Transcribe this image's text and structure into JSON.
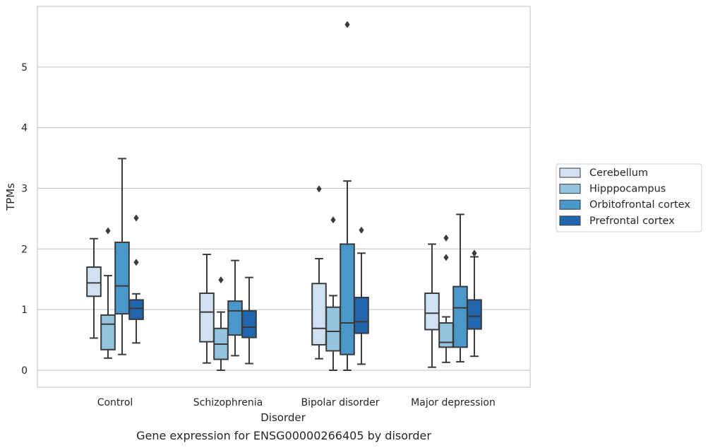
{
  "chart_data": {
    "type": "boxplot",
    "caption": "Gene expression for ENSG00000266405 by disorder",
    "xlabel": "Disorder",
    "ylabel": "TPMs",
    "ylim": [
      -0.28,
      6.0
    ],
    "yticks": [
      0,
      1,
      2,
      3,
      4,
      5
    ],
    "grid": true,
    "legend_position": "right",
    "categories": [
      "Control",
      "Schizophrenia",
      "Bipolar disorder",
      "Major depression"
    ],
    "series": [
      {
        "name": "Cerebellum",
        "color": "#d0e1f2",
        "boxes": [
          {
            "whislo": 0.53,
            "q1": 1.22,
            "med": 1.44,
            "q3": 1.7,
            "whishi": 2.17,
            "fliers": []
          },
          {
            "whislo": 0.12,
            "q1": 0.47,
            "med": 0.96,
            "q3": 1.27,
            "whishi": 1.91,
            "fliers": []
          },
          {
            "whislo": 0.19,
            "q1": 0.42,
            "med": 0.69,
            "q3": 1.43,
            "whishi": 1.84,
            "fliers": [
              2.99
            ]
          },
          {
            "whislo": 0.05,
            "q1": 0.67,
            "med": 0.94,
            "q3": 1.27,
            "whishi": 2.08,
            "fliers": []
          }
        ]
      },
      {
        "name": "Hipppocampus",
        "color": "#94c4df",
        "boxes": [
          {
            "whislo": 0.2,
            "q1": 0.34,
            "med": 0.76,
            "q3": 0.91,
            "whishi": 1.56,
            "fliers": [
              2.3
            ]
          },
          {
            "whislo": 0.0,
            "q1": 0.18,
            "med": 0.43,
            "q3": 0.69,
            "whishi": 0.96,
            "fliers": [
              1.49
            ]
          },
          {
            "whislo": 0.0,
            "q1": 0.32,
            "med": 0.64,
            "q3": 1.04,
            "whishi": 1.23,
            "fliers": [
              2.48
            ]
          },
          {
            "whislo": 0.13,
            "q1": 0.38,
            "med": 0.46,
            "q3": 0.78,
            "whishi": 0.88,
            "fliers": [
              1.86,
              2.18
            ]
          }
        ]
      },
      {
        "name": "Orbitofrontal cortex",
        "color": "#4a98c9",
        "boxes": [
          {
            "whislo": 0.26,
            "q1": 0.93,
            "med": 1.39,
            "q3": 2.11,
            "whishi": 3.49,
            "fliers": []
          },
          {
            "whislo": 0.24,
            "q1": 0.58,
            "med": 0.98,
            "q3": 1.14,
            "whishi": 1.81,
            "fliers": []
          },
          {
            "whislo": 0.0,
            "q1": 0.26,
            "med": 0.78,
            "q3": 2.08,
            "whishi": 3.12,
            "fliers": [
              5.7
            ]
          },
          {
            "whislo": 0.14,
            "q1": 0.38,
            "med": 1.03,
            "q3": 1.38,
            "whishi": 2.57,
            "fliers": []
          }
        ]
      },
      {
        "name": "Prefrontal cortex",
        "color": "#2166ac",
        "boxes": [
          {
            "whislo": 0.45,
            "q1": 0.84,
            "med": 1.02,
            "q3": 1.16,
            "whishi": 1.26,
            "fliers": [
              1.78,
              2.51
            ]
          },
          {
            "whislo": 0.11,
            "q1": 0.54,
            "med": 0.71,
            "q3": 0.98,
            "whishi": 1.53,
            "fliers": []
          },
          {
            "whislo": 0.1,
            "q1": 0.61,
            "med": 0.8,
            "q3": 1.2,
            "whishi": 1.93,
            "fliers": [
              2.31
            ]
          },
          {
            "whislo": 0.23,
            "q1": 0.68,
            "med": 0.89,
            "q3": 1.16,
            "whishi": 1.87,
            "fliers": [
              1.93
            ]
          }
        ]
      }
    ]
  }
}
